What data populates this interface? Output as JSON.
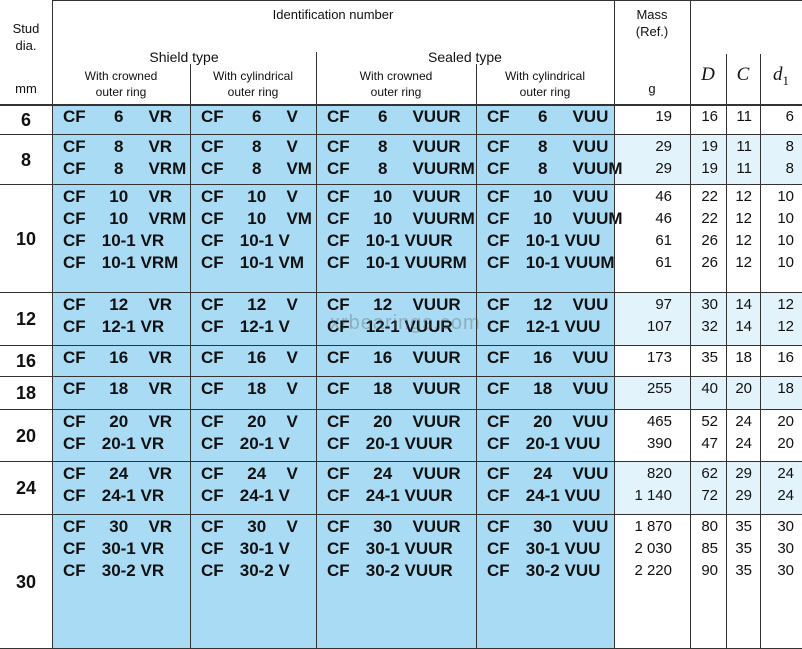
{
  "header": {
    "stud": "Stud\ndia.",
    "stud_unit": "mm",
    "identification": "Identification number",
    "groups": [
      "Shield type",
      "Sealed type"
    ],
    "subs": [
      "With crowned\nouter ring",
      "With cylindrical\nouter ring",
      "With crowned\nouter ring",
      "With cylindrical\nouter ring"
    ],
    "mass": "Mass\n(Ref.)",
    "mass_unit": "g",
    "D": "D",
    "C": "C",
    "d1": {
      "main": "d",
      "sub": "1"
    }
  },
  "rows": [
    {
      "stud": "6",
      "ids": [
        [
          "CF 6 VR"
        ],
        [
          "CF 6 V"
        ],
        [
          "CF 6 VUUR"
        ],
        [
          "CF 6 VUU"
        ]
      ],
      "mass": [
        "19"
      ],
      "D": [
        "16"
      ],
      "C": [
        "11"
      ],
      "d1": [
        "6"
      ]
    },
    {
      "stud": "8",
      "ids": [
        [
          "CF 8 VR",
          "CF 8 VRM"
        ],
        [
          "CF 8 V",
          "CF 8 VM"
        ],
        [
          "CF 8 VUUR",
          "CF 8 VUURM"
        ],
        [
          "CF 8 VUU",
          "CF 8 VUUM"
        ]
      ],
      "mass": [
        "29",
        "29"
      ],
      "D": [
        "19",
        "19"
      ],
      "C": [
        "11",
        "11"
      ],
      "d1": [
        "8",
        "8"
      ]
    },
    {
      "stud": "10",
      "ids": [
        [
          "CF 10 VR",
          "CF 10 VRM",
          "CF 10-1 VR",
          "CF 10-1 VRM"
        ],
        [
          "CF 10 V",
          "CF 10 VM",
          "CF 10-1 V",
          "CF 10-1 VM"
        ],
        [
          "CF 10 VUUR",
          "CF 10 VUURM",
          "CF 10-1 VUUR",
          "CF 10-1 VUURM"
        ],
        [
          "CF 10 VUU",
          "CF 10 VUUM",
          "CF 10-1 VUU",
          "CF 10-1 VUUM"
        ]
      ],
      "mass": [
        "46",
        "46",
        "61",
        "61"
      ],
      "D": [
        "22",
        "22",
        "26",
        "26"
      ],
      "C": [
        "12",
        "12",
        "12",
        "12"
      ],
      "d1": [
        "10",
        "10",
        "10",
        "10"
      ]
    },
    {
      "stud": "12",
      "ids": [
        [
          "CF 12 VR",
          "CF 12-1 VR"
        ],
        [
          "CF 12 V",
          "CF 12-1 V"
        ],
        [
          "CF 12 VUUR",
          "CF 12-1 VUUR"
        ],
        [
          "CF 12 VUU",
          "CF 12-1 VUU"
        ]
      ],
      "mass": [
        "97",
        "107"
      ],
      "D": [
        "30",
        "32"
      ],
      "C": [
        "14",
        "14"
      ],
      "d1": [
        "12",
        "12"
      ]
    },
    {
      "stud": "16",
      "ids": [
        [
          "CF 16 VR"
        ],
        [
          "CF 16 V"
        ],
        [
          "CF 16 VUUR"
        ],
        [
          "CF 16 VUU"
        ]
      ],
      "mass": [
        "173"
      ],
      "D": [
        "35"
      ],
      "C": [
        "18"
      ],
      "d1": [
        "16"
      ]
    },
    {
      "stud": "18",
      "ids": [
        [
          "CF 18 VR"
        ],
        [
          "CF 18 V"
        ],
        [
          "CF 18 VUUR"
        ],
        [
          "CF 18 VUU"
        ]
      ],
      "mass": [
        "255"
      ],
      "D": [
        "40"
      ],
      "C": [
        "20"
      ],
      "d1": [
        "18"
      ]
    },
    {
      "stud": "20",
      "ids": [
        [
          "CF 20 VR",
          "CF 20-1 VR"
        ],
        [
          "CF 20 V",
          "CF 20-1 V"
        ],
        [
          "CF 20 VUUR",
          "CF 20-1 VUUR"
        ],
        [
          "CF 20 VUU",
          "CF 20-1 VUU"
        ]
      ],
      "mass": [
        "465",
        "390"
      ],
      "D": [
        "52",
        "47"
      ],
      "C": [
        "24",
        "24"
      ],
      "d1": [
        "20",
        "20"
      ]
    },
    {
      "stud": "24",
      "ids": [
        [
          "CF 24 VR",
          "CF 24-1 VR"
        ],
        [
          "CF 24 V",
          "CF 24-1 V"
        ],
        [
          "CF 24 VUUR",
          "CF 24-1 VUUR"
        ],
        [
          "CF 24 VUU",
          "CF 24-1 VUU"
        ]
      ],
      "mass": [
        "820",
        "1 140"
      ],
      "D": [
        "62",
        "72"
      ],
      "C": [
        "29",
        "29"
      ],
      "d1": [
        "24",
        "24"
      ]
    },
    {
      "stud": "30",
      "ids": [
        [
          "CF 30 VR",
          "CF 30-1 VR",
          "CF 30-2 VR"
        ],
        [
          "CF 30 V",
          "CF 30-1 V",
          "CF 30-2 V"
        ],
        [
          "CF 30 VUUR",
          "CF 30-1 VUUR",
          "CF 30-2 VUUR"
        ],
        [
          "CF 30 VUU",
          "CF 30-1 VUU",
          "CF 30-2 VUU"
        ]
      ],
      "mass": [
        "1 870",
        "2 030",
        "2 220"
      ],
      "D": [
        "80",
        "85",
        "90"
      ],
      "C": [
        "35",
        "35",
        "35"
      ],
      "d1": [
        "30",
        "30",
        "30"
      ]
    }
  ],
  "watermark": "xrbearings.com"
}
